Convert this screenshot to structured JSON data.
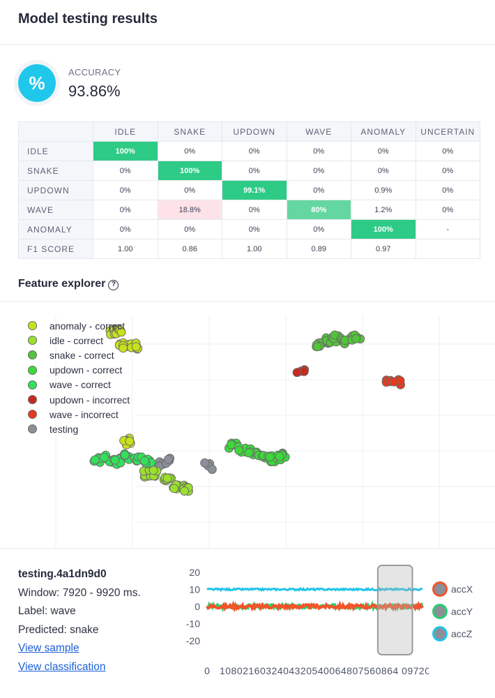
{
  "header": {
    "title": "Model testing results"
  },
  "accuracy": {
    "icon": "percent-icon",
    "icon_glyph": "%",
    "label": "ACCURACY",
    "value": "93.86%"
  },
  "matrix": {
    "columns": [
      "IDLE",
      "SNAKE",
      "UPDOWN",
      "WAVE",
      "ANOMALY",
      "UNCERTAIN"
    ],
    "rows": [
      {
        "label": "IDLE",
        "cells": [
          "100%",
          "0%",
          "0%",
          "0%",
          "0%",
          "0%"
        ]
      },
      {
        "label": "SNAKE",
        "cells": [
          "0%",
          "100%",
          "0%",
          "0%",
          "0%",
          "0%"
        ]
      },
      {
        "label": "UPDOWN",
        "cells": [
          "0%",
          "0%",
          "99.1%",
          "0%",
          "0.9%",
          "0%"
        ]
      },
      {
        "label": "WAVE",
        "cells": [
          "0%",
          "18.8%",
          "0%",
          "80%",
          "1.2%",
          "0%"
        ]
      },
      {
        "label": "ANOMALY",
        "cells": [
          "0%",
          "0%",
          "0%",
          "0%",
          "100%",
          "-"
        ]
      }
    ],
    "f1": {
      "label": "F1 SCORE",
      "cells": [
        "1.00",
        "0.86",
        "1.00",
        "0.89",
        "0.97",
        ""
      ]
    },
    "colors": {
      "correct": "#2ecb86",
      "partial": "#63d79f",
      "error": "#fde3e8"
    }
  },
  "feature_explorer": {
    "title": "Feature explorer",
    "help_glyph": "?",
    "legend": [
      {
        "label": "anomaly - correct",
        "color": "#c7e21b"
      },
      {
        "label": "idle - correct",
        "color": "#9be02e"
      },
      {
        "label": "snake - correct",
        "color": "#52c43a"
      },
      {
        "label": "updown - correct",
        "color": "#3dd93a"
      },
      {
        "label": "wave - correct",
        "color": "#33e05a"
      },
      {
        "label": "updown - incorrect",
        "color": "#c62a1f"
      },
      {
        "label": "wave - incorrect",
        "color": "#e7391f"
      },
      {
        "label": "testing",
        "color": "#8a8f98"
      }
    ]
  },
  "chart_data": {
    "type": "scatter",
    "series": [
      {
        "name": "anomaly - correct",
        "color": "#c7e21b",
        "points": [
          [
            0.23,
            0.88
          ],
          [
            0.24,
            0.88
          ],
          [
            0.25,
            0.82
          ],
          [
            0.27,
            0.82
          ],
          [
            0.26,
            0.43
          ]
        ]
      },
      {
        "name": "idle - correct",
        "color": "#9be02e",
        "points": [
          [
            0.3,
            0.3
          ],
          [
            0.31,
            0.3
          ],
          [
            0.34,
            0.27
          ],
          [
            0.36,
            0.25
          ],
          [
            0.38,
            0.24
          ]
        ]
      },
      {
        "name": "snake - correct",
        "color": "#52c43a",
        "points": [
          [
            0.64,
            0.83
          ],
          [
            0.66,
            0.84
          ],
          [
            0.68,
            0.85
          ],
          [
            0.7,
            0.84
          ],
          [
            0.72,
            0.85
          ]
        ]
      },
      {
        "name": "updown - correct",
        "color": "#3dd93a",
        "points": [
          [
            0.47,
            0.41
          ],
          [
            0.49,
            0.4
          ],
          [
            0.51,
            0.39
          ],
          [
            0.53,
            0.37
          ],
          [
            0.55,
            0.36
          ],
          [
            0.57,
            0.37
          ]
        ]
      },
      {
        "name": "wave - correct",
        "color": "#33e05a",
        "points": [
          [
            0.2,
            0.35
          ],
          [
            0.22,
            0.36
          ],
          [
            0.24,
            0.35
          ],
          [
            0.26,
            0.37
          ],
          [
            0.28,
            0.36
          ],
          [
            0.3,
            0.35
          ]
        ]
      },
      {
        "name": "updown - incorrect",
        "color": "#c62a1f",
        "points": [
          [
            0.61,
            0.71
          ]
        ]
      },
      {
        "name": "wave - incorrect",
        "color": "#e7391f",
        "points": [
          [
            0.79,
            0.68
          ],
          [
            0.8,
            0.67
          ]
        ]
      },
      {
        "name": "testing",
        "color": "#8a8f98",
        "points": [
          [
            0.33,
            0.34
          ],
          [
            0.34,
            0.35
          ],
          [
            0.42,
            0.33
          ]
        ]
      }
    ],
    "signal": {
      "type": "line",
      "y_ticks": [
        "20",
        "10",
        "0",
        "-10",
        "-20"
      ],
      "ylim": [
        -25,
        22
      ],
      "x_tick_text": "0    1080216032404320540064807560864 09720",
      "x_first_tick": "0",
      "x_rest_ticks": "1080216032404320540064807560864 09720",
      "series": [
        {
          "name": "accX",
          "color": "#f4542a",
          "level": 0
        },
        {
          "name": "accY",
          "color": "#2ecc71",
          "level": 0
        },
        {
          "name": "accZ",
          "color": "#23c4e8",
          "level": 10
        }
      ],
      "window_fraction": [
        0.79,
        0.95
      ]
    }
  },
  "sample": {
    "id": "testing.4a1dn9d0",
    "window": "Window: 7920 - 9920 ms.",
    "label": "Label: wave",
    "predicted": "Predicted: snake",
    "view_sample": "View sample",
    "view_classification": "View classification"
  }
}
